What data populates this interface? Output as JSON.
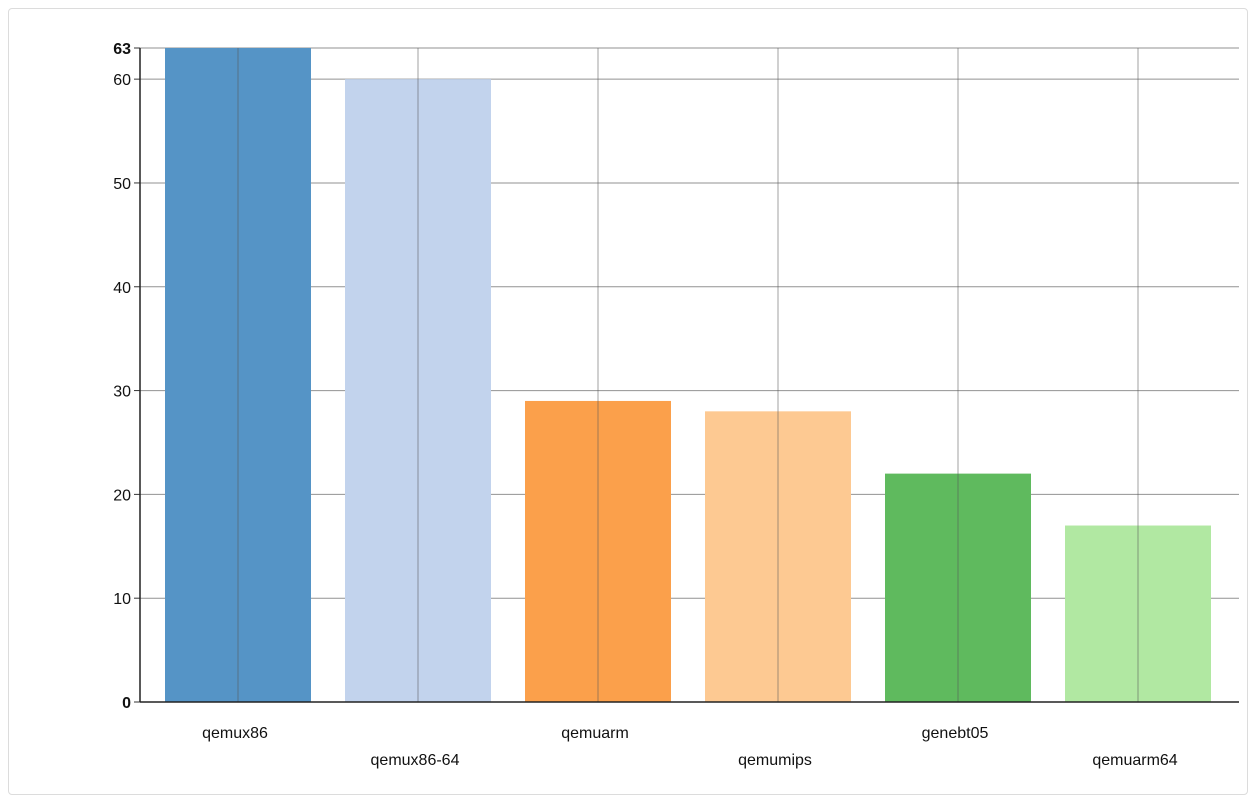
{
  "chart_data": {
    "type": "bar",
    "title": "",
    "xlabel": "",
    "ylabel": "",
    "categories": [
      "qemux86",
      "qemux86-64",
      "qemuarm",
      "qemumips",
      "genebt05",
      "qemuarm64"
    ],
    "values": [
      63,
      60,
      29,
      28,
      22,
      17
    ],
    "colors": [
      "#5594c6",
      "#c2d3ed",
      "#fba04b",
      "#fdc992",
      "#5fba5e",
      "#b1e8a2"
    ],
    "ylim": [
      0,
      63
    ],
    "yticks": [
      0,
      10,
      20,
      30,
      40,
      50,
      60,
      63
    ],
    "yticks_bold": [
      0,
      63
    ],
    "grid": true,
    "legend": "none"
  }
}
